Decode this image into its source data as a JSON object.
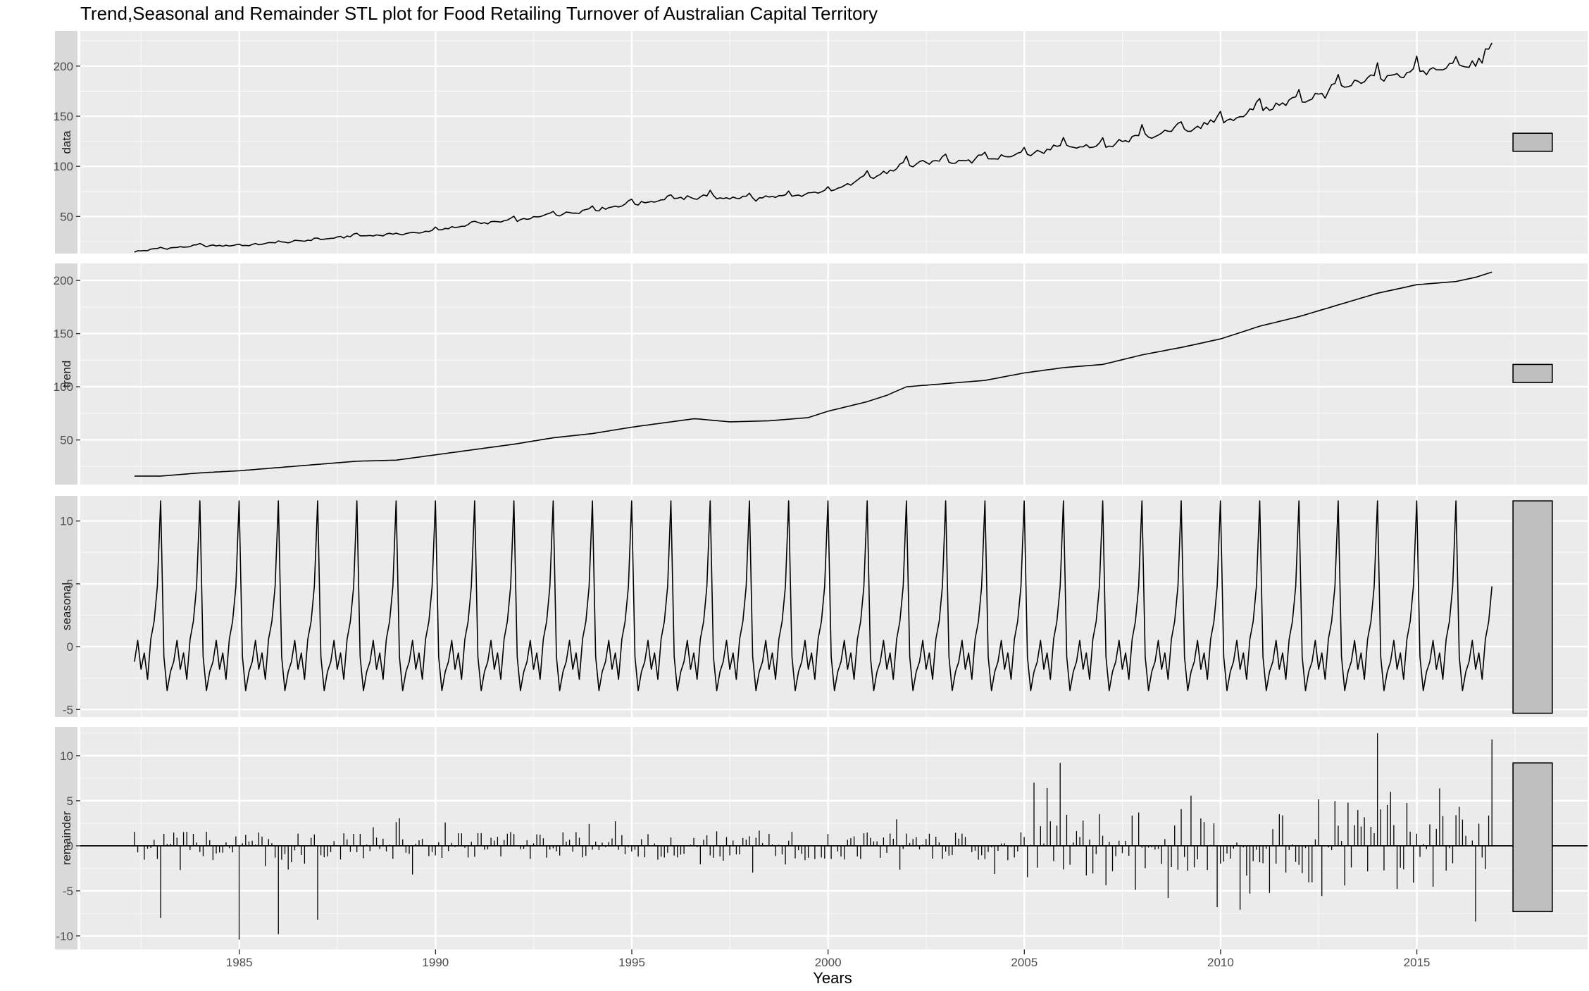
{
  "chart_data": {
    "type": "line",
    "title": "Trend,Seasonal and Remainder STL plot for Food Retailing Turnover of Australian Capital Territory",
    "xlabel": "Years",
    "x_range": [
      1982.33,
      2016.92
    ],
    "x_ticks": [
      1985,
      1990,
      1995,
      2000,
      2005,
      2010,
      2015
    ],
    "grid": true,
    "panels": [
      {
        "name": "data",
        "ylim": [
          13,
          235
        ],
        "y_ticks": [
          50,
          100,
          150,
          200
        ],
        "anchors": [
          [
            1982.33,
            15
          ],
          [
            1983,
            18
          ],
          [
            1984,
            21
          ],
          [
            1985,
            21
          ],
          [
            1986,
            24
          ],
          [
            1987,
            27
          ],
          [
            1988,
            31
          ],
          [
            1989,
            32
          ],
          [
            1990,
            36
          ],
          [
            1991,
            43
          ],
          [
            1992,
            46
          ],
          [
            1993,
            52
          ],
          [
            1994,
            57
          ],
          [
            1995,
            63
          ],
          [
            1996,
            68
          ],
          [
            1997,
            70
          ],
          [
            1998,
            68
          ],
          [
            1999,
            70
          ],
          [
            2000,
            76
          ],
          [
            2001,
            88
          ],
          [
            2002,
            102
          ],
          [
            2003,
            106
          ],
          [
            2004,
            108
          ],
          [
            2005,
            113
          ],
          [
            2006,
            120
          ],
          [
            2007,
            120
          ],
          [
            2008,
            130
          ],
          [
            2009,
            137
          ],
          [
            2010,
            145
          ],
          [
            2011,
            158
          ],
          [
            2012,
            166
          ],
          [
            2013,
            178
          ],
          [
            2014,
            189
          ],
          [
            2015,
            195
          ],
          [
            2016,
            199
          ],
          [
            2016.5,
            203
          ],
          [
            2016.92,
            220
          ]
        ],
        "seasonal_amplitude": 0.07,
        "scale_bar": [
          115,
          133
        ]
      },
      {
        "name": "trend",
        "ylim": [
          8,
          216
        ],
        "y_ticks": [
          50,
          100,
          150,
          200
        ],
        "anchors": [
          [
            1982.33,
            16
          ],
          [
            1983,
            16
          ],
          [
            1984,
            19
          ],
          [
            1985,
            21
          ],
          [
            1986,
            24
          ],
          [
            1987,
            27
          ],
          [
            1988,
            30
          ],
          [
            1989,
            31
          ],
          [
            1990,
            36
          ],
          [
            1991,
            41
          ],
          [
            1992,
            46
          ],
          [
            1993,
            52
          ],
          [
            1994,
            56
          ],
          [
            1995,
            62
          ],
          [
            1996,
            67
          ],
          [
            1996.6,
            70
          ],
          [
            1997.5,
            67
          ],
          [
            1998.5,
            68
          ],
          [
            1999.5,
            71
          ],
          [
            2000,
            77
          ],
          [
            2001,
            86
          ],
          [
            2001.5,
            92
          ],
          [
            2002,
            100
          ],
          [
            2003,
            103
          ],
          [
            2004,
            106
          ],
          [
            2005,
            113
          ],
          [
            2006,
            118
          ],
          [
            2007,
            121
          ],
          [
            2008,
            130
          ],
          [
            2009,
            137
          ],
          [
            2010,
            145
          ],
          [
            2011,
            157
          ],
          [
            2012,
            166
          ],
          [
            2013,
            177
          ],
          [
            2014,
            188
          ],
          [
            2015,
            196
          ],
          [
            2016,
            199
          ],
          [
            2016.5,
            203
          ],
          [
            2016.92,
            208
          ]
        ],
        "scale_bar": [
          104,
          121
        ]
      },
      {
        "name": "seasonal",
        "ylim": [
          -5.6,
          12.0
        ],
        "y_ticks": [
          -5,
          0,
          5,
          10
        ],
        "monthly_pattern": [
          -0.8,
          -3.5,
          -2.0,
          -1.2,
          0.5,
          -1.8,
          -0.5,
          -2.6,
          0.6,
          2.0,
          4.8,
          11.6
        ],
        "scale_bar": [
          -5.3,
          11.6
        ]
      },
      {
        "name": "remainder",
        "ylim": [
          -11.5,
          13.2
        ],
        "y_ticks": [
          -10,
          -5,
          0,
          5,
          10
        ],
        "notable_values": [
          [
            1985.0,
            -10.4
          ],
          [
            1986.0,
            -9.8
          ],
          [
            1987.0,
            -8.2
          ],
          [
            1983.0,
            -8.0
          ],
          [
            2005.9,
            9.2
          ],
          [
            2014.0,
            12.5
          ],
          [
            2016.9,
            11.8
          ],
          [
            2016.5,
            -8.4
          ]
        ],
        "scale_bar": [
          -7.3,
          9.2
        ]
      }
    ]
  }
}
